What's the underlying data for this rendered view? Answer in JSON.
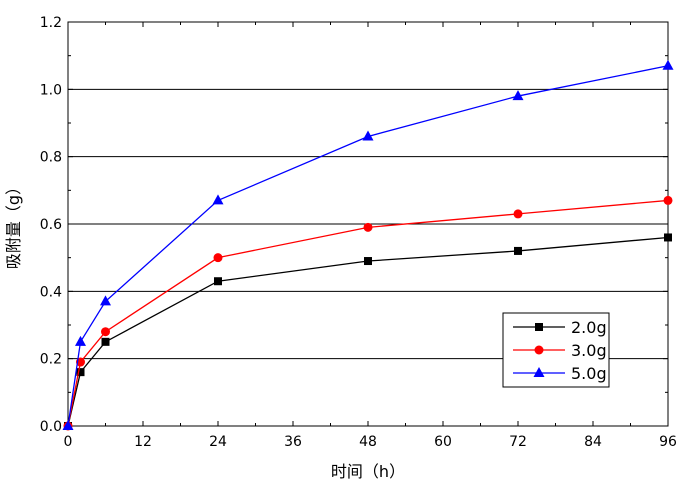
{
  "chart_data": {
    "type": "line",
    "title": "",
    "xlabel": "时间（h）",
    "ylabel": "吸附量（g）",
    "xlim": [
      0,
      96
    ],
    "ylim": [
      0,
      1.2
    ],
    "x_ticks": [
      0,
      12,
      24,
      36,
      48,
      60,
      72,
      84,
      96
    ],
    "x_tick_labels": [
      "0",
      "12",
      "24",
      "36",
      "48",
      "60",
      "72",
      "84",
      "96"
    ],
    "y_ticks": [
      0,
      0.2,
      0.4,
      0.6,
      0.8,
      1.0,
      1.2
    ],
    "y_tick_labels": [
      "0.0",
      "0.2",
      "0.4",
      "0.6",
      "0.8",
      "1.0",
      "1.2"
    ],
    "grid": "horizontal",
    "legend_position": "lower-right",
    "x": [
      0,
      2,
      6,
      24,
      48,
      72,
      96
    ],
    "series": [
      {
        "name": "2.0g",
        "color": "#000000",
        "marker": "square",
        "values": [
          0,
          0.16,
          0.25,
          0.43,
          0.49,
          0.52,
          0.56
        ]
      },
      {
        "name": "3.0g",
        "color": "#ff0000",
        "marker": "circle",
        "values": [
          0,
          0.19,
          0.28,
          0.5,
          0.59,
          0.63,
          0.67
        ]
      },
      {
        "name": "5.0g",
        "color": "#0000ff",
        "marker": "triangle",
        "values": [
          0,
          0.25,
          0.37,
          0.67,
          0.86,
          0.98,
          1.07
        ]
      }
    ]
  }
}
